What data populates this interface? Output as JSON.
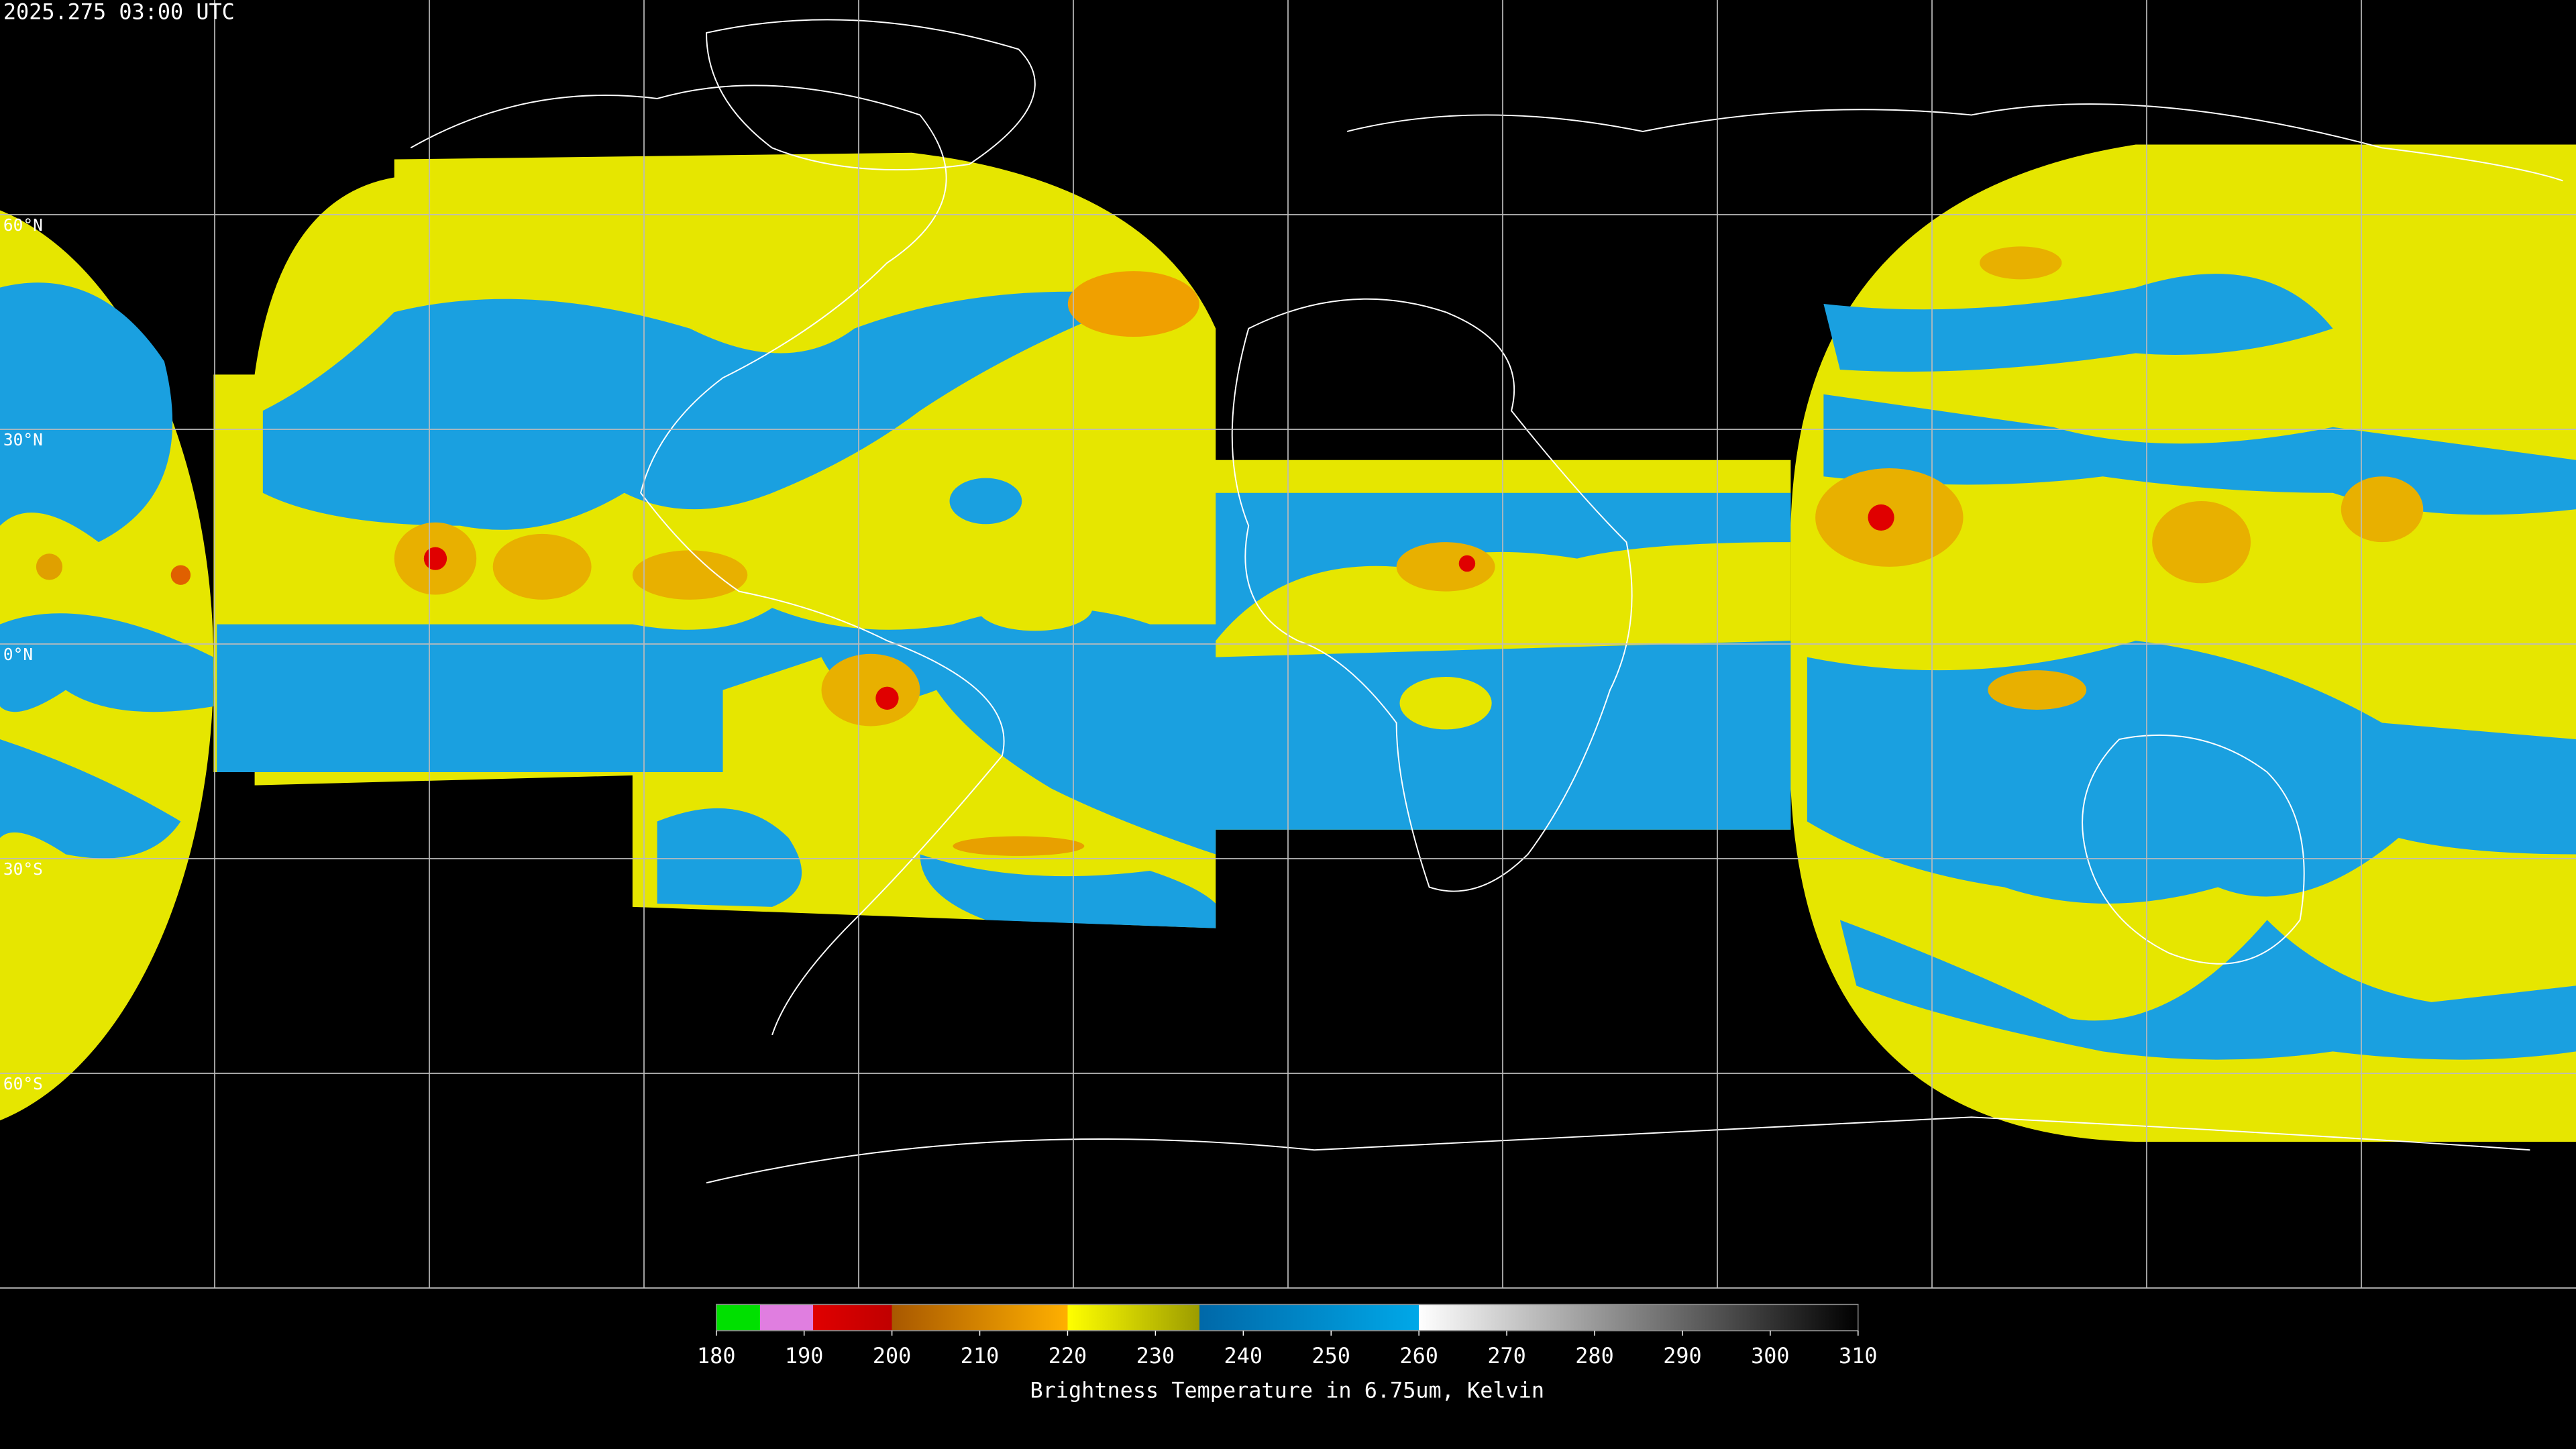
{
  "timestamp": "2025.275 03:00 UTC",
  "latitude_labels": [
    {
      "value": 60,
      "label": "60°N"
    },
    {
      "value": 30,
      "label": "30°N"
    },
    {
      "value": 0,
      "label": "0°N"
    },
    {
      "value": -30,
      "label": "30°S"
    },
    {
      "value": -60,
      "label": "60°S"
    }
  ],
  "colorbar": {
    "title": "Brightness Temperature in 6.75um, Kelvin",
    "range": [
      180,
      310
    ],
    "ticks": [
      180,
      190,
      200,
      210,
      220,
      230,
      240,
      250,
      260,
      270,
      280,
      290,
      300,
      310
    ],
    "stops": [
      {
        "value": 180,
        "color": "#00e000"
      },
      {
        "value": 185,
        "color": "#00e000"
      },
      {
        "value": 185,
        "color": "#e07ee0"
      },
      {
        "value": 191,
        "color": "#e07ee0"
      },
      {
        "value": 191,
        "color": "#e00000"
      },
      {
        "value": 200,
        "color": "#c00000"
      },
      {
        "value": 200,
        "color": "#a85800"
      },
      {
        "value": 220,
        "color": "#ffb000"
      },
      {
        "value": 220,
        "color": "#ffff00"
      },
      {
        "value": 235,
        "color": "#9c9c00"
      },
      {
        "value": 235,
        "color": "#0068a8"
      },
      {
        "value": 260,
        "color": "#00a8e8"
      },
      {
        "value": 260,
        "color": "#ffffff"
      },
      {
        "value": 310,
        "color": "#000000"
      }
    ]
  }
}
